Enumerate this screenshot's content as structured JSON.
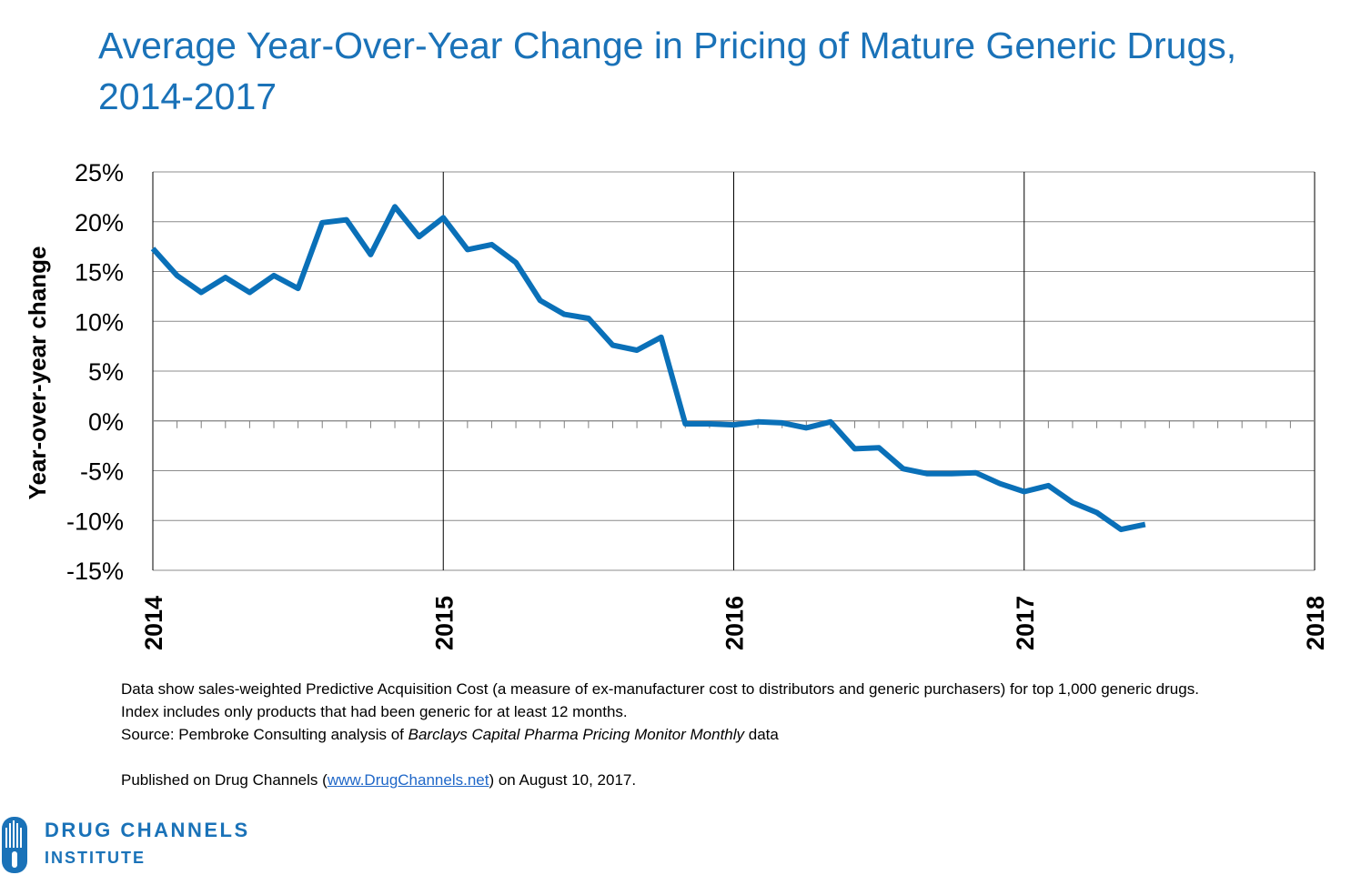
{
  "title": "Average Year-Over-Year Change in Pricing of Mature Generic Drugs, 2014-2017",
  "chart_data": {
    "type": "line",
    "title": "Average Year-Over-Year Change in Pricing of Mature Generic Drugs, 2014-2017",
    "ylabel": "Year-over-year change",
    "xlabel": "",
    "xlim": [
      2014,
      2018
    ],
    "ylim": [
      -15,
      25
    ],
    "y_ticks": [
      25,
      20,
      15,
      10,
      5,
      0,
      -5,
      -10,
      -15
    ],
    "y_tick_labels": [
      "25%",
      "20%",
      "15%",
      "10%",
      "5%",
      "0%",
      "-5%",
      "-10%",
      "-15%"
    ],
    "x_ticks": [
      2014,
      2015,
      2016,
      2017,
      2018
    ],
    "x_tick_labels": [
      "2014",
      "2015",
      "2016",
      "2017",
      "2018"
    ],
    "grid": "horizontal gridlines and yearly vertical lines",
    "line_color": "#0a70b8",
    "series": [
      {
        "name": "",
        "x": [
          "2014-01",
          "2014-02",
          "2014-03",
          "2014-04",
          "2014-05",
          "2014-06",
          "2014-07",
          "2014-08",
          "2014-09",
          "2014-10",
          "2014-11",
          "2014-12",
          "2015-01",
          "2015-02",
          "2015-03",
          "2015-04",
          "2015-05",
          "2015-06",
          "2015-07",
          "2015-08",
          "2015-09",
          "2015-10",
          "2015-11",
          "2015-12",
          "2016-01",
          "2016-02",
          "2016-03",
          "2016-04",
          "2016-05",
          "2016-06",
          "2016-07",
          "2016-08",
          "2016-09",
          "2016-10",
          "2016-11",
          "2016-12",
          "2017-01",
          "2017-02",
          "2017-03",
          "2017-04",
          "2017-05",
          "2017-06"
        ],
        "values": [
          17.3,
          14.6,
          12.9,
          14.4,
          12.9,
          14.6,
          13.3,
          19.9,
          20.2,
          16.7,
          21.5,
          18.5,
          20.4,
          17.2,
          17.7,
          15.9,
          12.1,
          10.7,
          10.3,
          7.6,
          7.1,
          8.4,
          -0.3,
          -0.3,
          -0.4,
          -0.1,
          -0.2,
          -0.7,
          -0.1,
          -2.8,
          -2.7,
          -4.8,
          -5.3,
          -5.3,
          -5.2,
          -6.3,
          -7.1,
          -6.5,
          -8.2,
          -9.2,
          -10.9,
          -10.4
        ]
      }
    ]
  },
  "notes": {
    "line1": "Data show sales-weighted Predictive Acquisition Cost (a measure of ex-manufacturer cost to distributors and generic purchasers) for top 1,000 generic drugs.",
    "line2": "Index includes only products that had been generic for at least 12 months.",
    "source_prefix": "Source: Pembroke Consulting analysis of ",
    "source_italic": "Barclays Capital Pharma Pricing Monitor Monthly",
    "source_suffix": " data",
    "published_prefix": "Published on Drug Channels (",
    "published_link": "www.DrugChannels.net",
    "published_suffix": ") on August 10, 2017."
  },
  "logo": {
    "line1": "DRUG CHANNELS",
    "line2": "INSTITUTE",
    "color": "#1a72b8"
  }
}
